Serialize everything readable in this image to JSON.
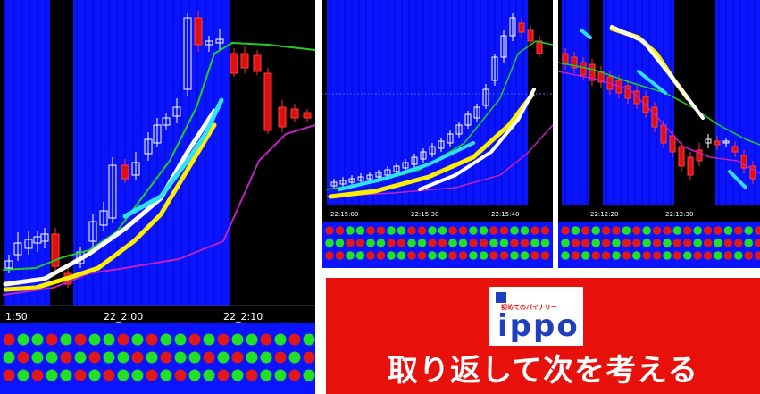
{
  "panels": {
    "left": {
      "time_labels": [
        "1:50",
        "22_2:00",
        "22_2:10"
      ]
    },
    "middle": {
      "time_labels": [
        "22:15:00",
        "22:15:30",
        "22:15:40"
      ]
    },
    "right": {
      "time_labels": [
        "22:12:20",
        "22:12:30"
      ]
    }
  },
  "banner": {
    "logo_tagline": "初めてのバイナリー",
    "logo_text": "ippo",
    "headline": "取り返して次を考える"
  },
  "colors": {
    "chart_blue": "#0a14ff",
    "banner_red": "#e8100a",
    "candle_up": "#ffffff",
    "candle_down": "#e01010",
    "ma_green": "#22cc22",
    "ma_magenta": "#c020c0",
    "dot_green": "#22e022",
    "dot_red": "#e01818"
  },
  "icons": {
    "logo": "ippo-logo"
  }
}
